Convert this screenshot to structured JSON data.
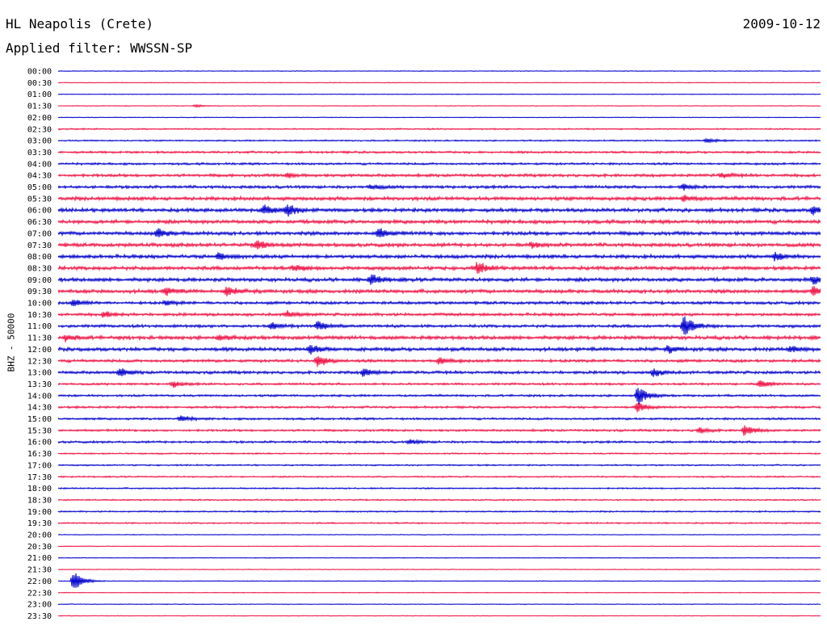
{
  "header": {
    "station": "HL Neapolis (Crete)",
    "filter": "Applied filter: WWSSN-SP",
    "date": "2009-10-12"
  },
  "chart_data": {
    "type": "line",
    "title": "HL Neapolis (Crete)",
    "subtitle": "Applied filter: WWSSN-SP",
    "date": "2009-10-12",
    "ylabel": "BHZ - 50000",
    "colors": [
      "#0000cc",
      "#ee1144"
    ],
    "grid": false,
    "row_labels": [
      "00:00",
      "00:30",
      "01:00",
      "01:30",
      "02:00",
      "02:30",
      "03:00",
      "03:30",
      "04:00",
      "04:30",
      "05:00",
      "05:30",
      "06:00",
      "06:30",
      "07:00",
      "07:30",
      "08:00",
      "08:30",
      "09:00",
      "09:30",
      "10:00",
      "10:30",
      "11:00",
      "11:30",
      "12:00",
      "12:30",
      "13:00",
      "13:30",
      "14:00",
      "14:30",
      "15:00",
      "15:30",
      "16:00",
      "16:30",
      "17:00",
      "17:30",
      "18:00",
      "18:30",
      "19:00",
      "19:30",
      "20:00",
      "20:30",
      "21:00",
      "21:30",
      "22:00",
      "22:30",
      "23:00",
      "23:30"
    ],
    "noise_level": [
      1,
      0,
      1,
      1,
      1,
      2,
      2,
      3,
      3,
      4,
      4,
      5,
      5,
      5,
      5,
      5,
      5,
      5,
      5,
      5,
      4,
      4,
      4,
      5,
      5,
      4,
      4,
      3,
      3,
      3,
      3,
      3,
      3,
      2,
      2,
      2,
      2,
      2,
      2,
      2,
      1,
      1,
      1,
      1,
      1,
      1,
      1,
      1
    ],
    "events": [
      {
        "row": 3,
        "x": 0.18,
        "amp": 1.5
      },
      {
        "row": 6,
        "x": 0.85,
        "amp": 3
      },
      {
        "row": 9,
        "x": 0.3,
        "amp": 3
      },
      {
        "row": 9,
        "x": 0.87,
        "amp": 3
      },
      {
        "row": 10,
        "x": 0.41,
        "amp": 3
      },
      {
        "row": 10,
        "x": 0.82,
        "amp": 4
      },
      {
        "row": 11,
        "x": 0.82,
        "amp": 4
      },
      {
        "row": 12,
        "x": 0.27,
        "amp": 6
      },
      {
        "row": 12,
        "x": 0.3,
        "amp": 8
      },
      {
        "row": 12,
        "x": 0.99,
        "amp": 5
      },
      {
        "row": 14,
        "x": 0.13,
        "amp": 6
      },
      {
        "row": 14,
        "x": 0.42,
        "amp": 6
      },
      {
        "row": 15,
        "x": 0.26,
        "amp": 6
      },
      {
        "row": 15,
        "x": 0.62,
        "amp": 3
      },
      {
        "row": 16,
        "x": 0.21,
        "amp": 4
      },
      {
        "row": 16,
        "x": 0.94,
        "amp": 5
      },
      {
        "row": 17,
        "x": 0.31,
        "amp": 4
      },
      {
        "row": 17,
        "x": 0.55,
        "amp": 8
      },
      {
        "row": 18,
        "x": 0.41,
        "amp": 7
      },
      {
        "row": 18,
        "x": 0.99,
        "amp": 5
      },
      {
        "row": 19,
        "x": 0.14,
        "amp": 5
      },
      {
        "row": 19,
        "x": 0.22,
        "amp": 6
      },
      {
        "row": 19,
        "x": 0.99,
        "amp": 5
      },
      {
        "row": 20,
        "x": 0.02,
        "amp": 4
      },
      {
        "row": 20,
        "x": 0.14,
        "amp": 3
      },
      {
        "row": 21,
        "x": 0.06,
        "amp": 4
      },
      {
        "row": 21,
        "x": 0.3,
        "amp": 4
      },
      {
        "row": 22,
        "x": 0.28,
        "amp": 4
      },
      {
        "row": 22,
        "x": 0.34,
        "amp": 6
      },
      {
        "row": 22,
        "x": 0.82,
        "amp": 14
      },
      {
        "row": 23,
        "x": 0.01,
        "amp": 4
      },
      {
        "row": 23,
        "x": 0.21,
        "amp": 3
      },
      {
        "row": 24,
        "x": 0.33,
        "amp": 6
      },
      {
        "row": 24,
        "x": 0.8,
        "amp": 4
      },
      {
        "row": 24,
        "x": 0.96,
        "amp": 4
      },
      {
        "row": 25,
        "x": 0.34,
        "amp": 8
      },
      {
        "row": 25,
        "x": 0.5,
        "amp": 4
      },
      {
        "row": 26,
        "x": 0.08,
        "amp": 5
      },
      {
        "row": 26,
        "x": 0.4,
        "amp": 5
      },
      {
        "row": 26,
        "x": 0.78,
        "amp": 5
      },
      {
        "row": 27,
        "x": 0.15,
        "amp": 4
      },
      {
        "row": 27,
        "x": 0.92,
        "amp": 5
      },
      {
        "row": 28,
        "x": 0.76,
        "amp": 12
      },
      {
        "row": 29,
        "x": 0.76,
        "amp": 6
      },
      {
        "row": 30,
        "x": 0.16,
        "amp": 4
      },
      {
        "row": 31,
        "x": 0.9,
        "amp": 7
      },
      {
        "row": 31,
        "x": 0.84,
        "amp": 4
      },
      {
        "row": 32,
        "x": 0.46,
        "amp": 3
      },
      {
        "row": 44,
        "x": 0.02,
        "amp": 14
      }
    ]
  }
}
